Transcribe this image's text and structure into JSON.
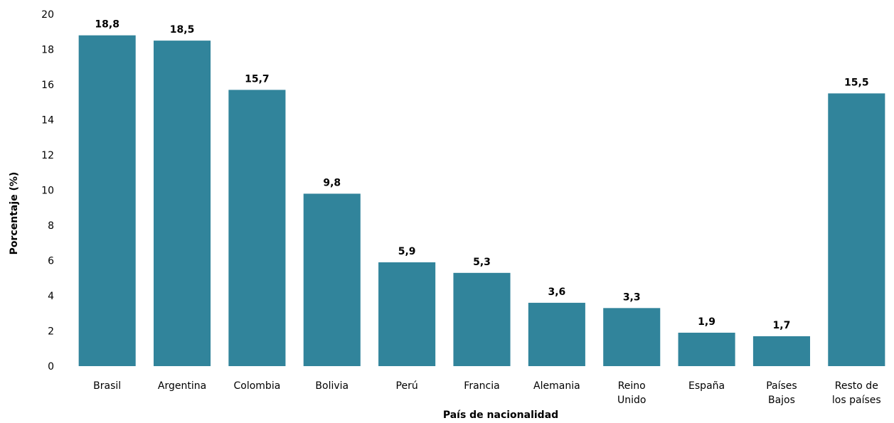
{
  "chart_data": {
    "type": "bar",
    "title": "",
    "xlabel": "País de nacionalidad",
    "ylabel": "Porcentaje (%)",
    "ylim": [
      0,
      20
    ],
    "yticks": [
      0,
      2,
      4,
      6,
      8,
      10,
      12,
      14,
      16,
      18,
      20
    ],
    "grid": false,
    "legend": "none",
    "bar_color": "#31849b",
    "categories": [
      "Brasil",
      "Argentina",
      "Colombia",
      "Bolivia",
      "Perú",
      "Francia",
      "Alemania",
      "Reino Unido",
      "España",
      "Países Bajos",
      "Resto de los países"
    ],
    "category_lines": [
      [
        "Brasil"
      ],
      [
        "Argentina"
      ],
      [
        "Colombia"
      ],
      [
        "Bolivia"
      ],
      [
        "Perú"
      ],
      [
        "Francia"
      ],
      [
        "Alemania"
      ],
      [
        "Reino",
        "Unido"
      ],
      [
        "España"
      ],
      [
        "Países",
        "Bajos"
      ],
      [
        "Resto de",
        "los países"
      ]
    ],
    "values": [
      18.8,
      18.5,
      15.7,
      9.8,
      5.9,
      5.3,
      3.6,
      3.3,
      1.9,
      1.7,
      15.5
    ],
    "data_labels": [
      "18,8",
      "18,5",
      "15,7",
      "9,8",
      "5,9",
      "5,3",
      "3,6",
      "3,3",
      "1,9",
      "1,7",
      "15,5"
    ]
  }
}
